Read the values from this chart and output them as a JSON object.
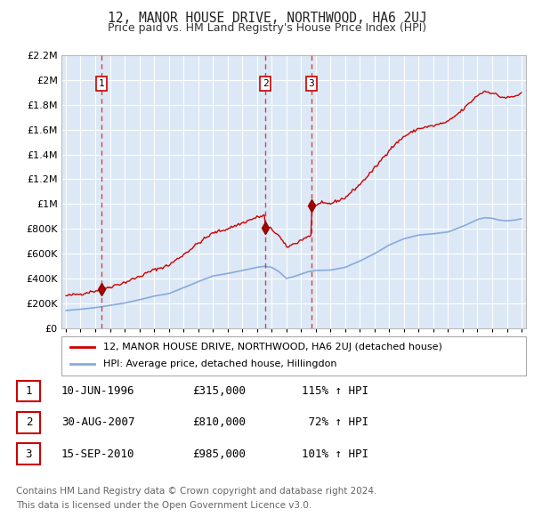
{
  "title": "12, MANOR HOUSE DRIVE, NORTHWOOD, HA6 2UJ",
  "subtitle": "Price paid vs. HM Land Registry's House Price Index (HPI)",
  "legend_line1": "12, MANOR HOUSE DRIVE, NORTHWOOD, HA6 2UJ (detached house)",
  "legend_line2": "HPI: Average price, detached house, Hillingdon",
  "transactions": [
    {
      "label": "1",
      "year": 1996.44,
      "price": 315000
    },
    {
      "label": "2",
      "year": 2007.58,
      "price": 810000
    },
    {
      "label": "3",
      "year": 2010.71,
      "price": 985000
    }
  ],
  "table_rows": [
    [
      "1",
      "10-JUN-1996",
      "£315,000",
      "115% ↑ HPI"
    ],
    [
      "2",
      "30-AUG-2007",
      "£810,000",
      " 72% ↑ HPI"
    ],
    [
      "3",
      "15-SEP-2010",
      "£985,000",
      "101% ↑ HPI"
    ]
  ],
  "footer1": "Contains HM Land Registry data © Crown copyright and database right 2024.",
  "footer2": "This data is licensed under the Open Government Licence v3.0.",
  "red_line_color": "#cc0000",
  "blue_line_color": "#88aadd",
  "bg_color": "#dce8f5",
  "grid_color": "#ffffff",
  "ylim": [
    0,
    2200000
  ],
  "ytick_vals": [
    0,
    200000,
    400000,
    600000,
    800000,
    1000000,
    1200000,
    1400000,
    1600000,
    1800000,
    2000000,
    2200000
  ],
  "ytick_labels": [
    "£0",
    "£200K",
    "£400K",
    "£600K",
    "£800K",
    "£1M",
    "£1.2M",
    "£1.4M",
    "£1.6M",
    "£1.8M",
    "£2M",
    "£2.2M"
  ],
  "xlim_start": 1993.7,
  "xlim_end": 2025.3
}
